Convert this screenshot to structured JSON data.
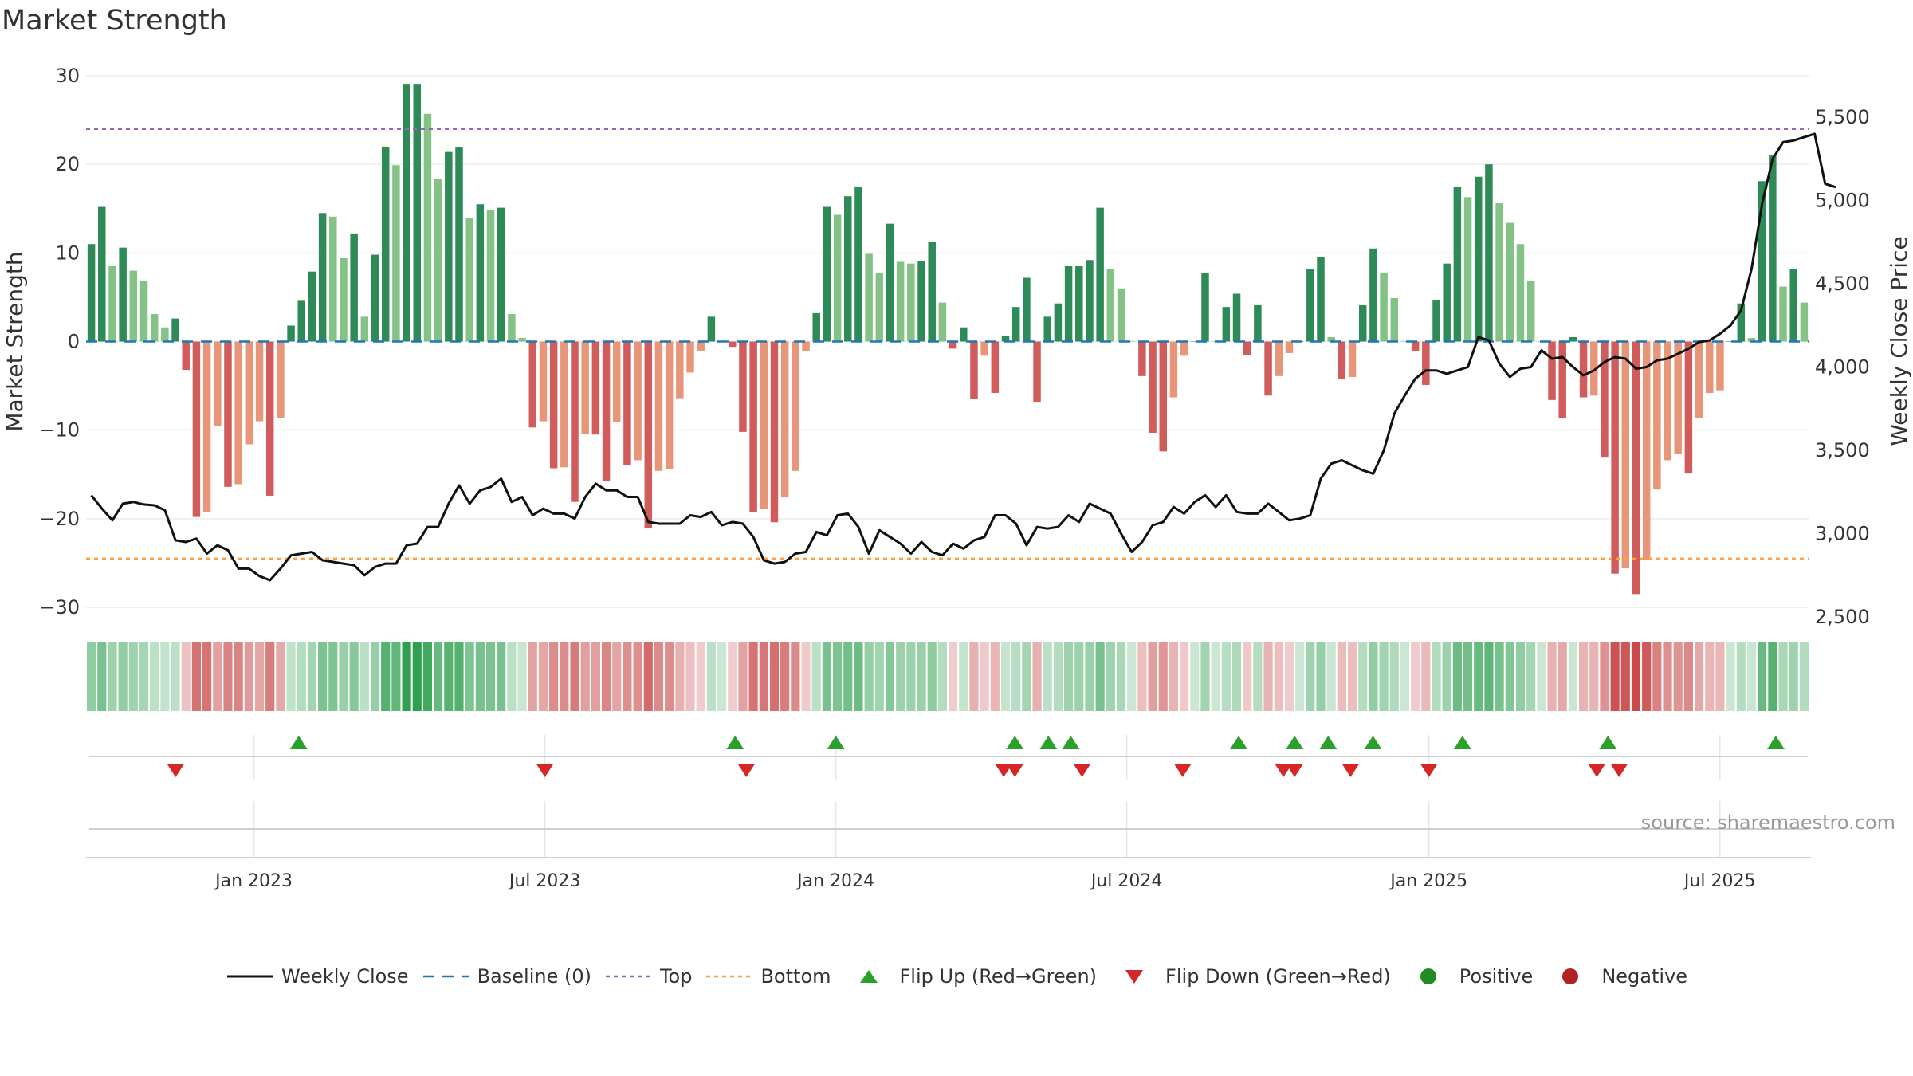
{
  "title": "Market Strength",
  "source": "source: sharemaestro.com",
  "colors": {
    "pos_strong": "#2e8b57",
    "pos_light": "#85c285",
    "neg_strong": "#d15c5c",
    "neg_light": "#e8967a",
    "price_line": "#111111",
    "baseline": "#1f77b4",
    "top_line": "#9467bd",
    "bottom_line": "#ff9f40",
    "flip_up": "#2ca02c",
    "flip_down": "#d62728",
    "positive": "#228b22",
    "negative": "#b22222"
  },
  "chart_data": {
    "type": "bar",
    "title": "Market Strength",
    "ylabel_left": "Market Strength",
    "ylabel_right": "Weekly Close Price",
    "ylim_left": [
      -30,
      30
    ],
    "yticks_left": [
      30,
      20,
      10,
      0,
      -10,
      -20,
      -30
    ],
    "ytick_labels_left": [
      "30",
      "20",
      "10",
      "0",
      "−10",
      "−20",
      "−30"
    ],
    "ylim_right": [
      2500,
      5500
    ],
    "yticks_right": [
      5500,
      5000,
      4500,
      4000,
      3500,
      3000,
      2500
    ],
    "ytick_labels_right": [
      "5,500",
      "5,000",
      "4,500",
      "4,000",
      "3,500",
      "3,000",
      "2,500"
    ],
    "x_start": "2022-09-19",
    "x_end": "2025-09-01",
    "xtick_dates": [
      "2023-01-02",
      "2023-07-03",
      "2024-01-01",
      "2024-07-01",
      "2025-01-06",
      "2025-07-07"
    ],
    "xtick_labels": [
      "Jan 2023",
      "Jul 2023",
      "Jan 2024",
      "Jul 2024",
      "Jan 2025",
      "Jul 2025"
    ],
    "top_level": 24,
    "bottom_level": -24.5,
    "baseline": 0,
    "strength": [
      11,
      15.2,
      8.5,
      10.6,
      8,
      6.8,
      3.1,
      1.6,
      2.6,
      -3.2,
      -19.8,
      -19.2,
      -9.5,
      -16.4,
      -16.1,
      -11.6,
      -9,
      -17.4,
      -8.6,
      1.8,
      4.6,
      7.9,
      14.5,
      14.1,
      9.4,
      12.2,
      2.8,
      9.8,
      22,
      19.9,
      29,
      29,
      25.7,
      18.4,
      21.4,
      21.9,
      13.9,
      15.5,
      14.8,
      15.1,
      3.1,
      0.4,
      -9.7,
      -9,
      -14.3,
      -14.2,
      -18.1,
      -10.4,
      -10.5,
      -15.7,
      -9.1,
      -13.9,
      -13.4,
      -21.1,
      -14.6,
      -14.4,
      -6.4,
      -3.5,
      -1.1,
      2.8,
      0,
      -0.6,
      -10.2,
      -19.3,
      -18.9,
      -20.4,
      -17.6,
      -14.6,
      -1.1,
      3.2,
      15.2,
      14.3,
      16.4,
      17.5,
      9.9,
      7.7,
      13.3,
      9,
      8.8,
      9.1,
      11.2,
      4.4,
      -0.8,
      1.6,
      -6.5,
      -1.6,
      -5.8,
      0.6,
      3.9,
      7.2,
      -6.8,
      2.8,
      4.3,
      8.5,
      8.5,
      9.2,
      15.1,
      8.2,
      6,
      0,
      -3.9,
      -10.3,
      -12.4,
      -6.3,
      -1.6,
      0,
      7.7,
      0,
      3.9,
      5.4,
      -1.5,
      4.1,
      -6.1,
      -3.9,
      -1.3,
      0,
      8.2,
      9.5,
      0.5,
      -4.2,
      -4,
      4.1,
      10.5,
      7.8,
      4.9,
      0,
      -1.1,
      -4.9,
      4.7,
      8.8,
      17.5,
      16.3,
      18.6,
      20,
      15.6,
      13.4,
      11,
      6.8,
      0,
      -6.6,
      -8.6,
      0.5,
      -6.3,
      -6.1,
      -13.1,
      -26.2,
      -25.6,
      -28.5,
      -24.7,
      -16.7,
      -13.4,
      -12.7,
      -14.9,
      -8.6,
      -5.8,
      -5.5,
      0,
      4.3,
      0.4,
      18.1,
      21.1,
      6.2,
      8.2,
      4.4
    ],
    "close": [
      3230,
      3150,
      3080,
      3180,
      3190,
      3175,
      3170,
      3140,
      2960,
      2950,
      2970,
      2880,
      2930,
      2900,
      2790,
      2790,
      2745,
      2720,
      2790,
      2870,
      2880,
      2890,
      2840,
      2830,
      2820,
      2810,
      2750,
      2800,
      2820,
      2820,
      2930,
      2940,
      3040,
      3040,
      3180,
      3290,
      3180,
      3260,
      3280,
      3330,
      3190,
      3220,
      3110,
      3150,
      3120,
      3120,
      3090,
      3220,
      3300,
      3260,
      3260,
      3220,
      3220,
      3070,
      3060,
      3060,
      3060,
      3110,
      3100,
      3130,
      3050,
      3070,
      3060,
      2980,
      2840,
      2820,
      2830,
      2880,
      2890,
      3010,
      2990,
      3110,
      3120,
      3040,
      2880,
      3020,
      2980,
      2940,
      2880,
      2950,
      2890,
      2870,
      2940,
      2910,
      2960,
      2980,
      3110,
      3110,
      3060,
      2930,
      3040,
      3030,
      3040,
      3110,
      3070,
      3180,
      3150,
      3120,
      3000,
      2890,
      2950,
      3050,
      3070,
      3160,
      3120,
      3190,
      3230,
      3160,
      3230,
      3130,
      3120,
      3120,
      3180,
      3130,
      3080,
      3090,
      3110,
      3330,
      3420,
      3440,
      3410,
      3380,
      3360,
      3500,
      3720,
      3830,
      3930,
      3980,
      3980,
      3960,
      3980,
      4000,
      4180,
      4160,
      4020,
      3940,
      3990,
      4000,
      4100,
      4050,
      4060,
      4000,
      3950,
      3980,
      4030,
      4060,
      4050,
      3990,
      4000,
      4040,
      4050,
      4080,
      4110,
      4150,
      4160,
      4200,
      4250,
      4340,
      4590,
      4980,
      5250,
      5350,
      5360,
      5380,
      5400,
      5100,
      5080
    ]
  },
  "signals": {
    "flip_up_dates": [
      "2023-01-30",
      "2023-10-30",
      "2024-01-01",
      "2024-04-22",
      "2024-05-13",
      "2024-05-27",
      "2024-09-09",
      "2024-10-14",
      "2024-11-04",
      "2024-12-02",
      "2025-01-27",
      "2025-04-28",
      "2025-08-11"
    ],
    "flip_down_dates": [
      "2022-11-14",
      "2023-07-03",
      "2023-11-06",
      "2024-04-15",
      "2024-04-22",
      "2024-06-03",
      "2024-08-05",
      "2024-10-07",
      "2024-10-14",
      "2024-11-18",
      "2025-01-06",
      "2025-04-21",
      "2025-05-05"
    ]
  },
  "legend": [
    {
      "label": "Weekly Close",
      "kind": "line"
    },
    {
      "label": "Baseline (0)",
      "kind": "dash"
    },
    {
      "label": "Top",
      "kind": "dot-purple"
    },
    {
      "label": "Bottom",
      "kind": "dot-orange"
    },
    {
      "label": "Flip Up (Red→Green)",
      "kind": "tri-up"
    },
    {
      "label": "Flip Down (Green→Red)",
      "kind": "tri-down"
    },
    {
      "label": "Positive",
      "kind": "circle-pos"
    },
    {
      "label": "Negative",
      "kind": "circle-neg"
    }
  ]
}
